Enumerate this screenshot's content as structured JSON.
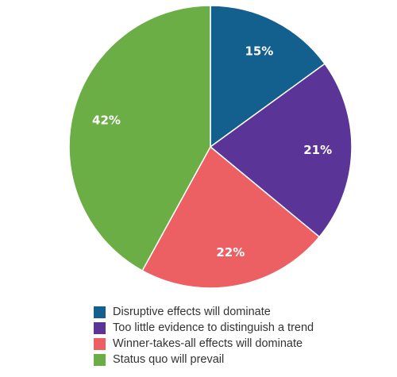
{
  "chart_data": {
    "type": "pie",
    "title": "",
    "slices": [
      {
        "label": "Disruptive effects will dominate",
        "value": 15,
        "display": "15%",
        "color": "#13608f"
      },
      {
        "label": "Too little evidence to distinguish a trend",
        "value": 21,
        "display": "21%",
        "color": "#5a3496"
      },
      {
        "label": "Winner-takes-all effects will dominate",
        "value": 22,
        "display": "22%",
        "color": "#ec5f63"
      },
      {
        "label": "Status quo will prevail",
        "value": 42,
        "display": "42%",
        "color": "#6cae46"
      }
    ],
    "start_angle_deg": 0,
    "direction": "clockwise",
    "legend_position": "bottom"
  }
}
